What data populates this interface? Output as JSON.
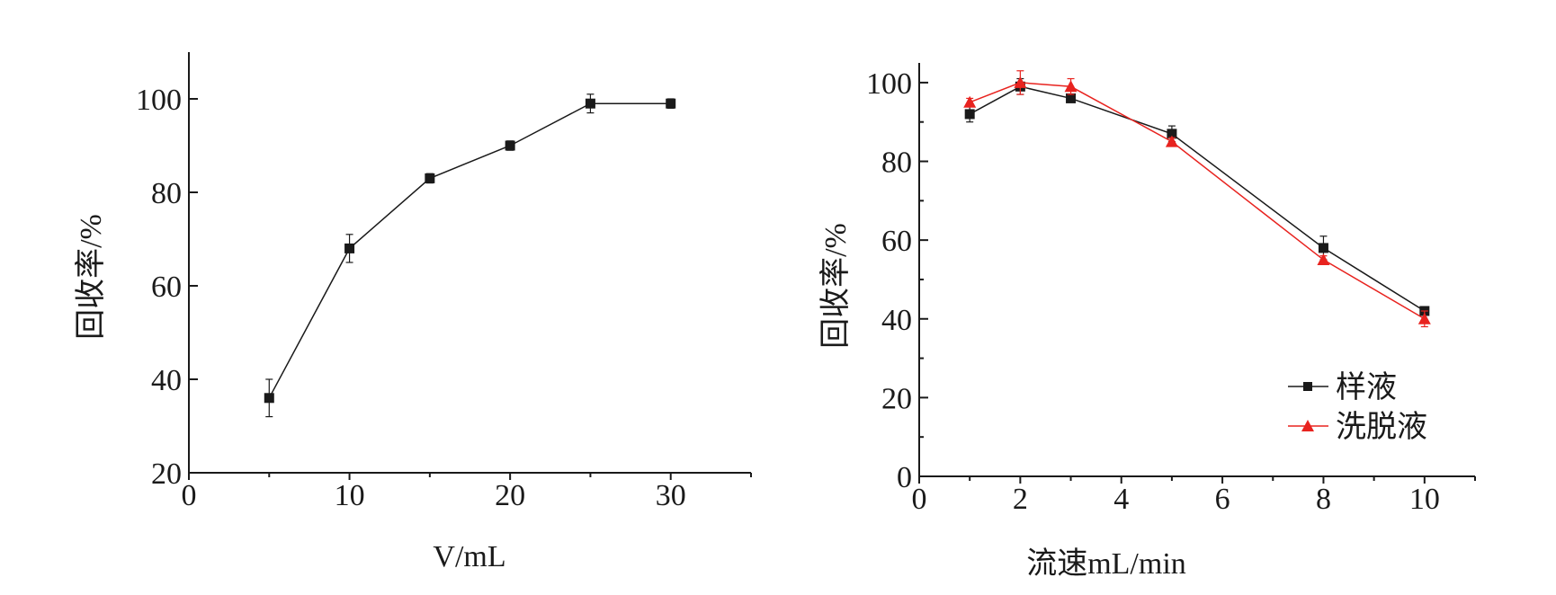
{
  "chart_data": [
    {
      "type": "line",
      "xlabel": "V/mL",
      "ylabel": "回收率/%",
      "xlim": [
        0,
        35
      ],
      "ylim": [
        20,
        110
      ],
      "x_ticks": [
        0,
        10,
        20,
        30
      ],
      "y_ticks": [
        20,
        40,
        60,
        80,
        100
      ],
      "x_tick_labels": [
        "0",
        "10",
        "20",
        "30"
      ],
      "y_tick_labels": [
        "20",
        "40",
        "60",
        "80",
        "100"
      ],
      "legend": "none",
      "grid": false,
      "series": [
        {
          "color": "#1a1a1a",
          "marker": "square",
          "x": [
            5,
            10,
            15,
            20,
            25,
            30
          ],
          "y": [
            36,
            68,
            83,
            90,
            99,
            99
          ],
          "error": [
            4,
            3,
            1,
            1,
            2,
            1
          ]
        }
      ]
    },
    {
      "type": "line",
      "xlabel": "流速mL/min",
      "ylabel": "回收率/%",
      "xlim": [
        0,
        11
      ],
      "ylim": [
        0,
        105
      ],
      "x_ticks": [
        0,
        2,
        4,
        6,
        8,
        10
      ],
      "y_ticks": [
        0,
        20,
        40,
        60,
        80,
        100
      ],
      "x_tick_labels": [
        "0",
        "2",
        "4",
        "6",
        "8",
        "10"
      ],
      "y_tick_labels": [
        "0",
        "20",
        "40",
        "60",
        "80",
        "100"
      ],
      "legend": "bottom-right",
      "grid": false,
      "series": [
        {
          "name": "样液",
          "color": "#1a1a1a",
          "marker": "square",
          "x": [
            1,
            2,
            3,
            5,
            8,
            10
          ],
          "y": [
            92,
            99,
            96,
            87,
            58,
            42
          ],
          "error": [
            2,
            2,
            1,
            2,
            3,
            1
          ]
        },
        {
          "name": "洗脱液",
          "color": "#e8231f",
          "marker": "triangle",
          "x": [
            1,
            2,
            3,
            5,
            8,
            10
          ],
          "y": [
            95,
            100,
            99,
            85,
            55,
            40
          ],
          "error": [
            1,
            3,
            2,
            1,
            1,
            2
          ]
        }
      ]
    }
  ]
}
